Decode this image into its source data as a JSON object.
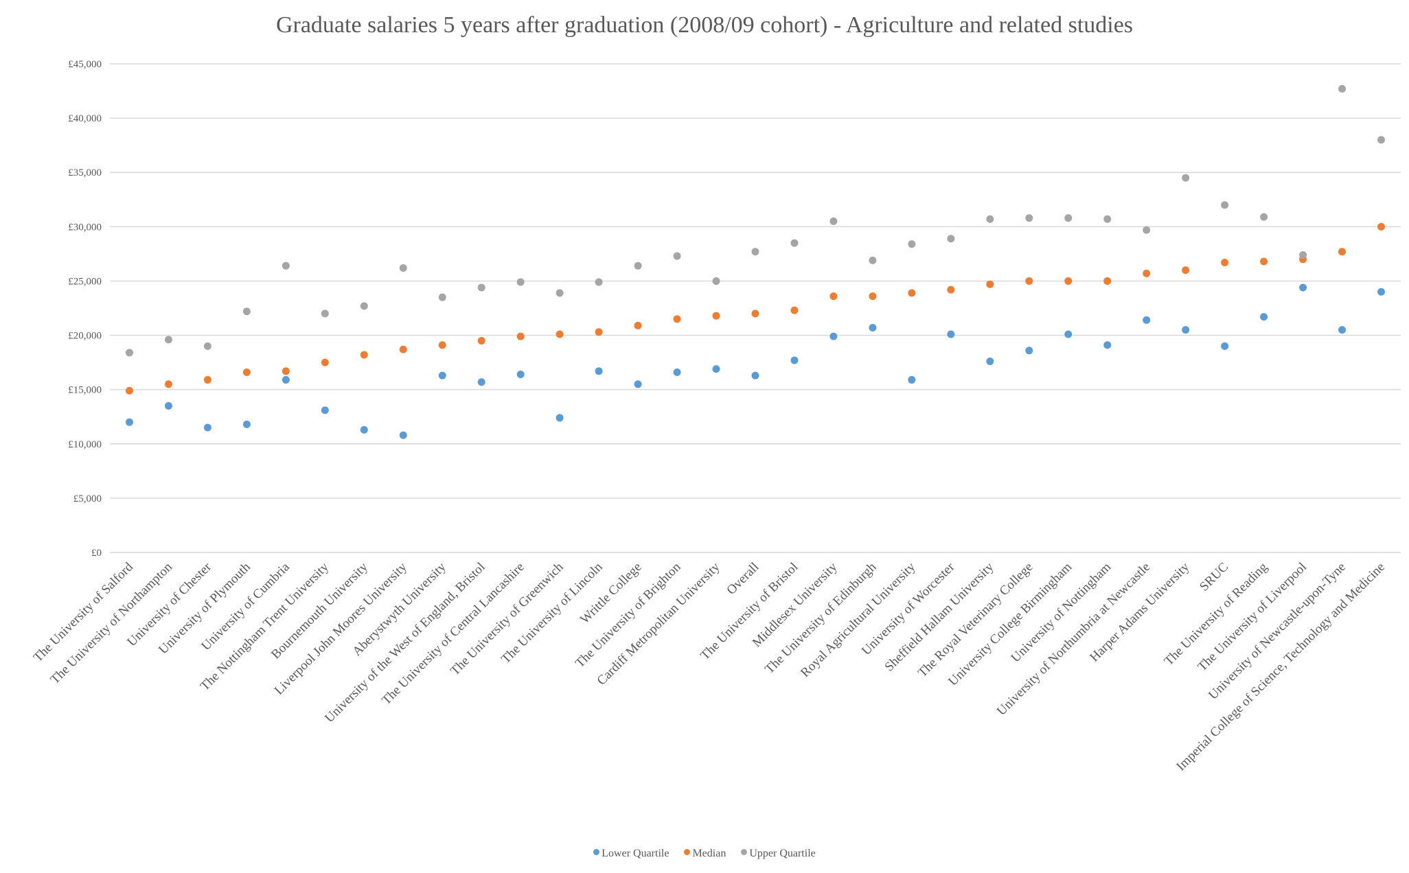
{
  "chart_data": {
    "type": "scatter",
    "title": "Graduate salaries 5 years after graduation (2008/09 cohort) - Agriculture and related studies",
    "xlabel": "",
    "ylabel": "",
    "ylim": [
      0,
      45000
    ],
    "yticks": [
      0,
      5000,
      10000,
      15000,
      20000,
      25000,
      30000,
      35000,
      40000,
      45000
    ],
    "ytick_labels": [
      "£0",
      "£5,000",
      "£10,000",
      "£15,000",
      "£20,000",
      "£25,000",
      "£30,000",
      "£35,000",
      "£40,000",
      "£45,000"
    ],
    "grid": true,
    "legend_position": "bottom",
    "categories": [
      "The University of Salford",
      "The University of Northampton",
      "University of Chester",
      "University of Plymouth",
      "University of Cumbria",
      "The Nottingham Trent University",
      "Bournemouth University",
      "Liverpool John Moores University",
      "Aberystwyth University",
      "University of the West of England, Bristol",
      "The University of Central Lancashire",
      "The University of Greenwich",
      "The University of Lincoln",
      "Writtle College",
      "The University of Brighton",
      "Cardiff Metropolitan University",
      "Overall",
      "The University of Bristol",
      "Middlesex University",
      "The University of Edinburgh",
      "Royal Agricultural University",
      "University of Worcester",
      "Sheffield Hallam University",
      "The Royal Veterinary College",
      "University College Birmingham",
      "University of Nottingham",
      "University of Northumbria at Newcastle",
      "Harper Adams University",
      "SRUC",
      "The University of Reading",
      "The University of Liverpool",
      "University of Newcastle-upon-Tyne",
      "Imperial College of Science, Technology and Medicine"
    ],
    "series": [
      {
        "name": "Lower Quartile",
        "color": "#5b9bd5",
        "values": [
          12000,
          13500,
          11500,
          11800,
          15900,
          13100,
          11300,
          10800,
          16300,
          15700,
          16400,
          12400,
          16700,
          15500,
          16600,
          16900,
          16300,
          17700,
          19900,
          20700,
          15900,
          20100,
          17600,
          18600,
          20100,
          19100,
          21400,
          20500,
          19000,
          21700,
          24400,
          20500,
          24000
        ]
      },
      {
        "name": "Median",
        "color": "#ed7d31",
        "values": [
          14900,
          15500,
          15900,
          16600,
          16700,
          17500,
          18200,
          18700,
          19100,
          19500,
          19900,
          20100,
          20300,
          20900,
          21500,
          21800,
          22000,
          22300,
          23600,
          23600,
          23900,
          24200,
          24700,
          25000,
          25000,
          25000,
          25700,
          26000,
          26700,
          26800,
          27000,
          27700,
          30000
        ]
      },
      {
        "name": "Upper Quartile",
        "color": "#a5a5a5",
        "values": [
          18400,
          19600,
          19000,
          22200,
          26400,
          22000,
          22700,
          26200,
          23500,
          24400,
          24900,
          23900,
          24900,
          26400,
          27300,
          25000,
          27700,
          28500,
          30500,
          26900,
          28400,
          28900,
          30700,
          30800,
          30800,
          30700,
          29700,
          34500,
          32000,
          30900,
          27400,
          42700,
          38000
        ]
      }
    ]
  },
  "colors": {
    "gridline": "#d9d9d9",
    "text": "#595959"
  }
}
